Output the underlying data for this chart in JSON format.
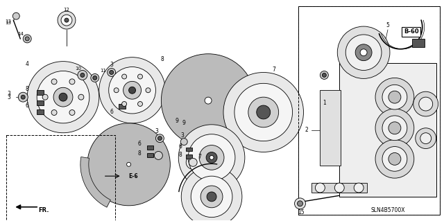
{
  "bg_color": "#ffffff",
  "diagram_code": "SLN4B5700X",
  "ref_code": "B-60",
  "line_color": "#000000",
  "fill_light": "#f0f0f0",
  "fill_mid": "#cccccc",
  "fill_dark": "#888888",
  "fill_vdark": "#444444"
}
